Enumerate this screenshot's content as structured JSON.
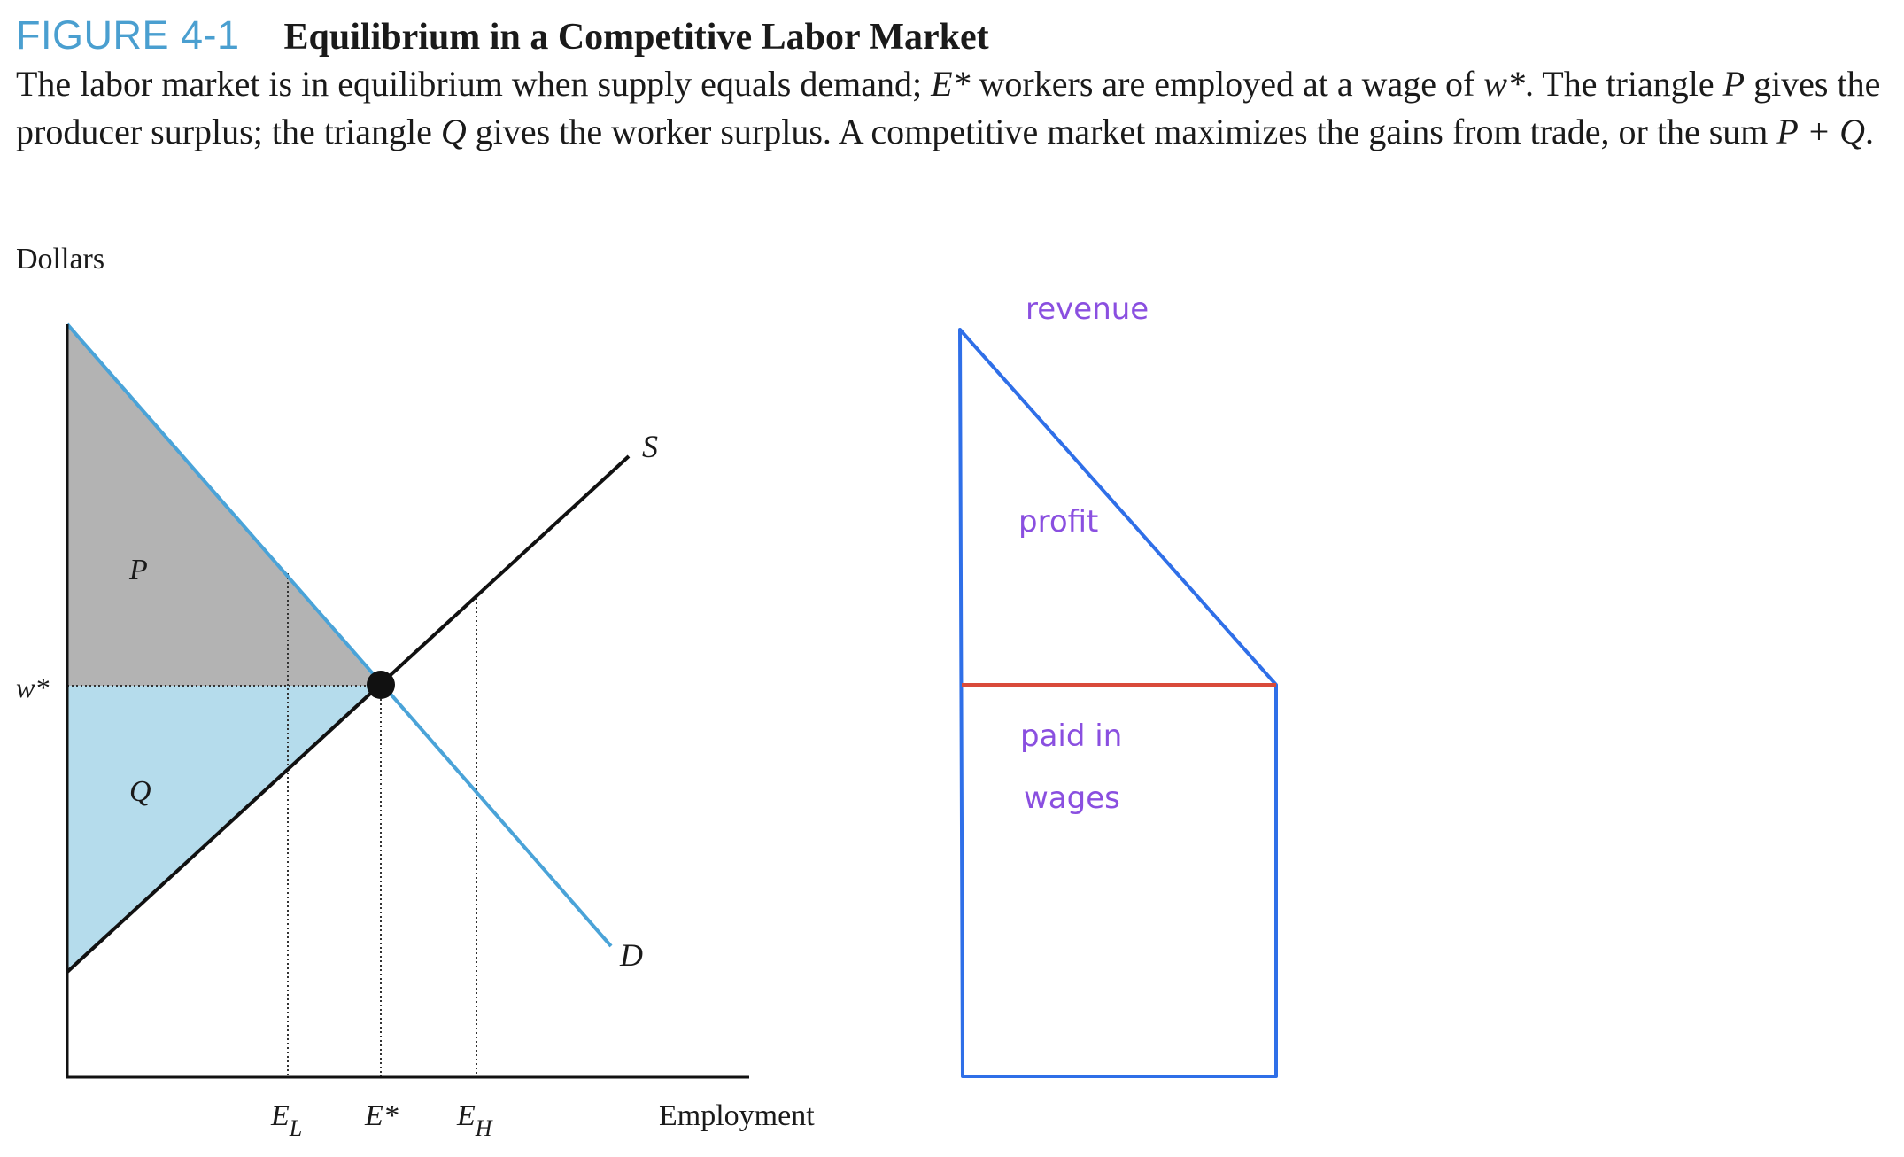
{
  "figure": {
    "label": "FIGURE 4-1",
    "title": "Equilibrium in a Competitive Labor Market",
    "caption": {
      "part1": "The labor market is in equilibrium when supply equals demand; ",
      "e_star": "E*",
      "part2": " workers are employed at a wage of ",
      "w_star": "w*",
      "part3": ". The triangle ",
      "p": "P",
      "part4": " gives the producer surplus; the triangle ",
      "q": "Q",
      "part5": " gives the worker surplus. A competitive market maximizes the gains from trade, or the sum ",
      "sum": "P + Q",
      "part6": "."
    }
  },
  "graph": {
    "y_axis_label": "Dollars",
    "x_axis_label": "Employment",
    "wage_label": "w*",
    "region_p_label": "P",
    "region_q_label": "Q",
    "supply_label": "S",
    "demand_label": "D",
    "x_ticks": {
      "e_low": "E",
      "e_low_sub": "L",
      "e_star": "E*",
      "e_high": "E",
      "e_high_sub": "H"
    },
    "colors": {
      "producer_surplus": "#b3b3b3",
      "worker_surplus": "#b5dcec",
      "demand_line": "#4aa3d8",
      "supply_line": "#111111",
      "equilibrium_point": "#111111"
    }
  },
  "annotation": {
    "revenue_label": "revenue",
    "profit_label": "profit",
    "wages_label_line1": "paid in",
    "wages_label_line2": "wages",
    "colors": {
      "outline": "#2f6fe8",
      "wage_line": "#d94a3a",
      "handwriting": "#8a4fe0"
    }
  }
}
